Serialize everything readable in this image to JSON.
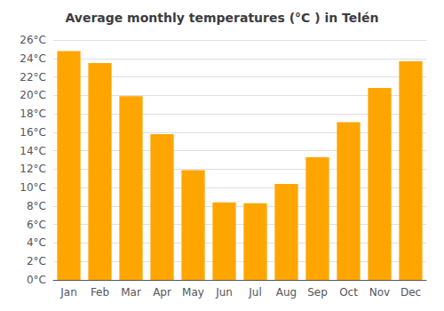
{
  "chart_data": {
    "type": "bar",
    "title": "Average monthly temperatures (°C ) in Telén",
    "categories": [
      "Jan",
      "Feb",
      "Mar",
      "Apr",
      "May",
      "Jun",
      "Jul",
      "Aug",
      "Sep",
      "Oct",
      "Nov",
      "Dec"
    ],
    "values": [
      24.8,
      23.5,
      19.9,
      15.8,
      11.9,
      8.4,
      8.3,
      10.4,
      13.3,
      17.1,
      20.8,
      23.7
    ],
    "color": "#FFA500",
    "ylim": [
      0,
      26
    ],
    "yticks": [
      {
        "value": 0,
        "label": "0°C"
      },
      {
        "value": 2,
        "label": "2°C"
      },
      {
        "value": 4,
        "label": "4°C"
      },
      {
        "value": 6,
        "label": "6°C"
      },
      {
        "value": 8,
        "label": "8°C"
      },
      {
        "value": 10,
        "label": "10°C"
      },
      {
        "value": 12,
        "label": "12°C"
      },
      {
        "value": 14,
        "label": "14°C"
      },
      {
        "value": 16,
        "label": "16°C"
      },
      {
        "value": 18,
        "label": "18°C"
      },
      {
        "value": 20,
        "label": "20°C"
      },
      {
        "value": 22,
        "label": "22°C"
      },
      {
        "value": 24,
        "label": "24°C"
      },
      {
        "value": 26,
        "label": "26°C"
      }
    ],
    "grid": true
  }
}
